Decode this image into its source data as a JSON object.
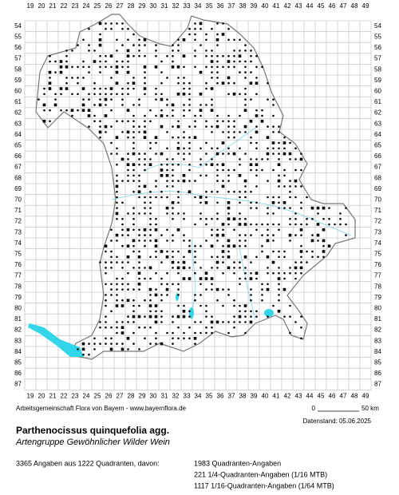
{
  "grid": {
    "columns": [
      19,
      20,
      21,
      22,
      23,
      24,
      25,
      26,
      27,
      28,
      29,
      30,
      31,
      32,
      33,
      34,
      35,
      36,
      37,
      38,
      39,
      40,
      41,
      42,
      43,
      44,
      45,
      46,
      47,
      48,
      49
    ],
    "rows": [
      54,
      55,
      56,
      57,
      58,
      59,
      60,
      61,
      62,
      63,
      64,
      65,
      66,
      67,
      68,
      69,
      70,
      71,
      72,
      73,
      74,
      75,
      76,
      77,
      78,
      79,
      80,
      81,
      82,
      83,
      84,
      85,
      86,
      87
    ]
  },
  "footer": {
    "credit": "Arbeitsgemeinschaft Flora von Bayern - www.bayernflora.de",
    "scale_start": "0",
    "scale_end": "50 km",
    "date": "Datenstand: 05.06.2025"
  },
  "species": {
    "name": "Parthenocissus quinquefolia agg.",
    "common_name": "Artengruppe Gewöhnlicher Wilder Wein"
  },
  "summary": {
    "total": "3365 Angaben aus 1222 Quadranten, davon:",
    "lines": [
      "1983 Quadranten-Angaben",
      "221 1/4-Quadranten-Angaben (1/16 MTB)",
      "1117 1/16-Quadranten-Angaben (1/64 MTB)"
    ]
  }
}
